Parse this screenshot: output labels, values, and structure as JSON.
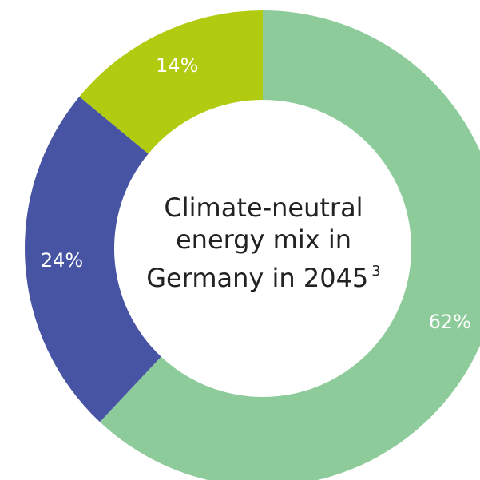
{
  "chart_data": {
    "type": "pie",
    "donut": true,
    "slices": [
      {
        "label": "62%",
        "value": 62,
        "color": "#8ecb9b"
      },
      {
        "label": "24%",
        "value": 24,
        "color": "#4654a3"
      },
      {
        "label": "14%",
        "value": 14,
        "color": "#b0cb10"
      }
    ],
    "center_text": {
      "line1": "Climate-neutral",
      "line2": "energy mix in",
      "line3": "Germany in 2045",
      "footnote": "3"
    }
  }
}
